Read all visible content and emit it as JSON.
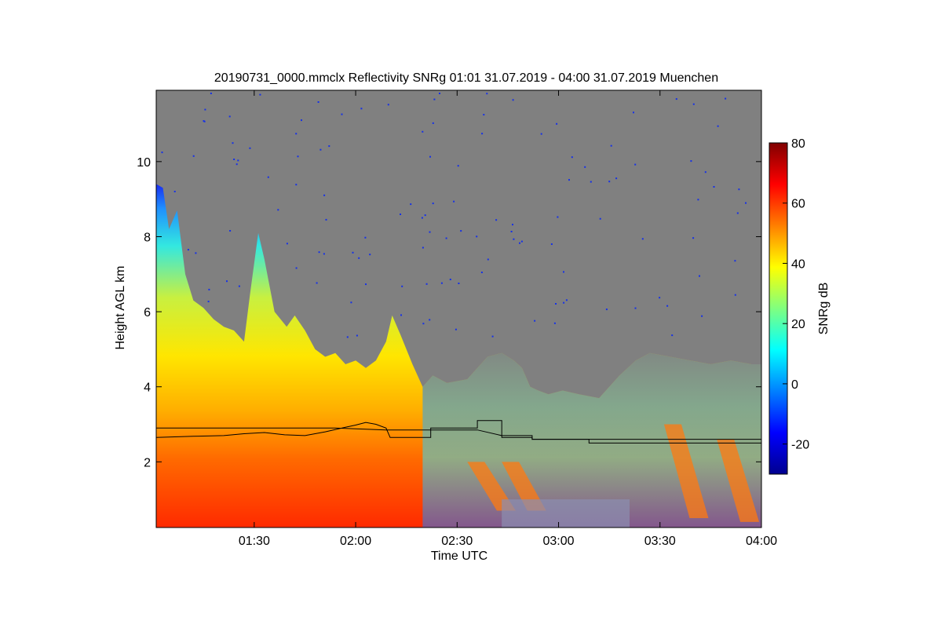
{
  "chart_data": {
    "type": "heatmap",
    "title": "20190731_0000.mmclx Reflectivity SNRg   01:01 31.07.2019 - 04:00 31.07.2019 Muenchen",
    "xlabel": "Time UTC",
    "ylabel": "Height AGL km",
    "colorbar_label": "SNRg dB",
    "x_range_hours": [
      1.017,
      4.0
    ],
    "y_range_km": [
      0.25,
      11.9
    ],
    "x_ticks": [
      {
        "value": 1.5,
        "label": "01:30"
      },
      {
        "value": 2.0,
        "label": "02:00"
      },
      {
        "value": 2.5,
        "label": "02:30"
      },
      {
        "value": 3.0,
        "label": "03:00"
      },
      {
        "value": 3.5,
        "label": "03:30"
      },
      {
        "value": 4.0,
        "label": "04:00"
      }
    ],
    "y_ticks": [
      {
        "value": 2,
        "label": "2"
      },
      {
        "value": 4,
        "label": "4"
      },
      {
        "value": 6,
        "label": "6"
      },
      {
        "value": 8,
        "label": "8"
      },
      {
        "value": 10,
        "label": "10"
      }
    ],
    "colorbar_range": [
      -30,
      80
    ],
    "colorbar_ticks": [
      {
        "value": -20,
        "label": "-20"
      },
      {
        "value": 0,
        "label": "0"
      },
      {
        "value": 20,
        "label": "20"
      },
      {
        "value": 40,
        "label": "40"
      },
      {
        "value": 60,
        "label": "60"
      },
      {
        "value": 80,
        "label": "80"
      }
    ],
    "colormap": "jet",
    "no_signal_color": "#808080",
    "noise_speckle_color": "#1530e8",
    "echo_top_km": [
      [
        1.017,
        9.4
      ],
      [
        1.05,
        9.3
      ],
      [
        1.08,
        8.2
      ],
      [
        1.12,
        8.7
      ],
      [
        1.16,
        7.0
      ],
      [
        1.2,
        6.3
      ],
      [
        1.25,
        6.1
      ],
      [
        1.3,
        5.8
      ],
      [
        1.35,
        5.6
      ],
      [
        1.4,
        5.5
      ],
      [
        1.45,
        5.2
      ],
      [
        1.48,
        6.5
      ],
      [
        1.52,
        8.1
      ],
      [
        1.55,
        7.4
      ],
      [
        1.6,
        6.0
      ],
      [
        1.66,
        5.6
      ],
      [
        1.7,
        5.9
      ],
      [
        1.75,
        5.5
      ],
      [
        1.8,
        5.0
      ],
      [
        1.85,
        4.8
      ],
      [
        1.9,
        4.9
      ],
      [
        1.95,
        4.6
      ],
      [
        2.0,
        4.7
      ],
      [
        2.05,
        4.5
      ],
      [
        2.1,
        4.7
      ],
      [
        2.15,
        5.2
      ],
      [
        2.18,
        5.9
      ],
      [
        2.22,
        5.4
      ],
      [
        2.28,
        4.6
      ],
      [
        2.33,
        4.0
      ],
      [
        2.38,
        4.3
      ],
      [
        2.45,
        4.1
      ],
      [
        2.55,
        4.2
      ],
      [
        2.6,
        4.5
      ],
      [
        2.65,
        4.8
      ],
      [
        2.72,
        4.9
      ],
      [
        2.78,
        4.7
      ],
      [
        2.82,
        4.5
      ],
      [
        2.86,
        4.0
      ],
      [
        2.9,
        3.9
      ],
      [
        2.95,
        3.8
      ],
      [
        3.02,
        3.9
      ],
      [
        3.1,
        3.8
      ],
      [
        3.2,
        3.7
      ],
      [
        3.3,
        4.3
      ],
      [
        3.38,
        4.7
      ],
      [
        3.45,
        4.9
      ],
      [
        3.55,
        4.8
      ],
      [
        3.65,
        4.7
      ],
      [
        3.75,
        4.6
      ],
      [
        3.85,
        4.7
      ],
      [
        3.95,
        4.6
      ],
      [
        4.0,
        4.6
      ]
    ],
    "cloud_base_km": [
      [
        1.017,
        2.65
      ],
      [
        1.2,
        2.68
      ],
      [
        1.35,
        2.7
      ],
      [
        1.45,
        2.75
      ],
      [
        1.55,
        2.78
      ],
      [
        1.65,
        2.72
      ],
      [
        1.75,
        2.7
      ],
      [
        1.85,
        2.8
      ],
      [
        1.95,
        2.92
      ],
      [
        2.0,
        2.98
      ],
      [
        2.05,
        3.05
      ],
      [
        2.1,
        3.0
      ],
      [
        2.15,
        2.9
      ],
      [
        2.17,
        2.65
      ],
      [
        2.3,
        2.65
      ],
      [
        2.37,
        2.65
      ],
      [
        2.37,
        2.9
      ],
      [
        2.6,
        2.9
      ],
      [
        2.6,
        3.1
      ],
      [
        2.72,
        3.1
      ],
      [
        2.72,
        2.65
      ],
      [
        2.87,
        2.65
      ],
      [
        2.87,
        2.6
      ],
      [
        3.0,
        2.6
      ],
      [
        3.15,
        2.6
      ],
      [
        3.15,
        2.5
      ],
      [
        4.0,
        2.5
      ]
    ],
    "mixed_layer_km": [
      [
        1.017,
        2.9
      ],
      [
        1.4,
        2.9
      ],
      [
        1.9,
        2.9
      ],
      [
        2.15,
        2.85
      ],
      [
        2.25,
        2.85
      ],
      [
        2.37,
        2.85
      ],
      [
        2.6,
        2.85
      ],
      [
        2.72,
        2.7
      ],
      [
        2.87,
        2.7
      ],
      [
        2.87,
        2.6
      ],
      [
        4.0,
        2.6
      ]
    ]
  }
}
